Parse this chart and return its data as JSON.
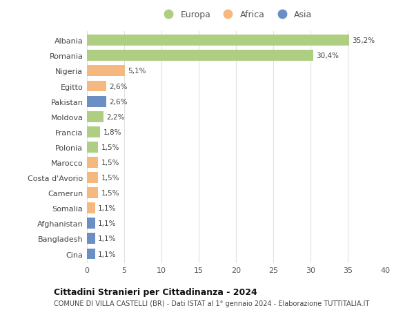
{
  "countries": [
    "Albania",
    "Romania",
    "Nigeria",
    "Egitto",
    "Pakistan",
    "Moldova",
    "Francia",
    "Polonia",
    "Marocco",
    "Costa d'Avorio",
    "Camerun",
    "Somalia",
    "Afghanistan",
    "Bangladesh",
    "Cina"
  ],
  "values": [
    35.2,
    30.4,
    5.1,
    2.6,
    2.6,
    2.2,
    1.8,
    1.5,
    1.5,
    1.5,
    1.5,
    1.1,
    1.1,
    1.1,
    1.1
  ],
  "labels": [
    "35,2%",
    "30,4%",
    "5,1%",
    "2,6%",
    "2,6%",
    "2,2%",
    "1,8%",
    "1,5%",
    "1,5%",
    "1,5%",
    "1,5%",
    "1,1%",
    "1,1%",
    "1,1%",
    "1,1%"
  ],
  "continents": [
    "Europa",
    "Europa",
    "Africa",
    "Africa",
    "Asia",
    "Europa",
    "Europa",
    "Europa",
    "Africa",
    "Africa",
    "Africa",
    "Africa",
    "Asia",
    "Asia",
    "Asia"
  ],
  "colors": {
    "Europa": "#aecf82",
    "Africa": "#f5b97f",
    "Asia": "#6b8ec4"
  },
  "xlim": [
    0,
    40
  ],
  "xticks": [
    0,
    5,
    10,
    15,
    20,
    25,
    30,
    35,
    40
  ],
  "background_color": "#ffffff",
  "grid_color": "#e0e0e0",
  "title": "Cittadini Stranieri per Cittadinanza - 2024",
  "subtitle": "COMUNE DI VILLA CASTELLI (BR) - Dati ISTAT al 1° gennaio 2024 - Elaborazione TUTTITALIA.IT",
  "bar_height": 0.72,
  "legend_labels": [
    "Europa",
    "Africa",
    "Asia"
  ]
}
